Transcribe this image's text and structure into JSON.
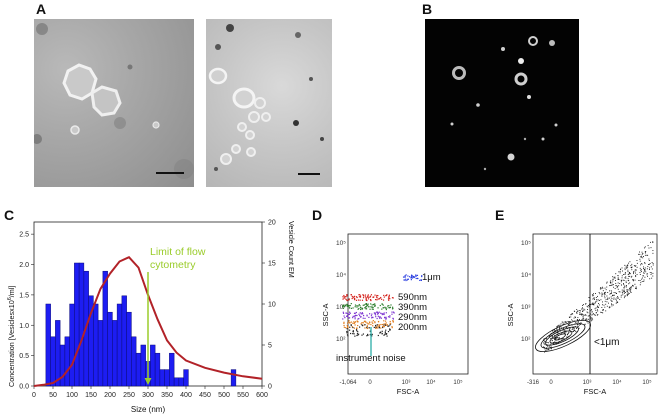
{
  "panels": {
    "A": "A",
    "B": "B",
    "C": "C",
    "D": "D",
    "E": "E"
  },
  "chart_c": {
    "type": "bar+line",
    "annotation": "Limit of flow cytometry",
    "annotation_line1": "Limit of flow",
    "annotation_line2": "cytometry",
    "xlabel": "Size (nm)",
    "ylabel_left": "Concentration [Vesiclesx10",
    "ylabel_left_sup": "6",
    "ylabel_left_end": "/ml]",
    "ylabel_right": "Vesicle Count EM",
    "xticks": [
      "0",
      "50",
      "100",
      "150",
      "200",
      "250",
      "300",
      "350",
      "400",
      "450",
      "500",
      "550",
      "600"
    ],
    "yticks_left": [
      "0.0",
      "0.5",
      "1.0",
      "1.5",
      "2.0",
      "2.5"
    ],
    "yticks_right": [
      "0",
      "5",
      "10",
      "15",
      "20"
    ]
  },
  "chart_d": {
    "xlabel": "FSC-A",
    "ylabel": "SSC-A",
    "xticks": [
      "-1,064",
      "0",
      "10³",
      "10⁴",
      "10⁵"
    ],
    "yticks": [
      "10²",
      "10³",
      "10⁴",
      "10⁵"
    ],
    "labels": [
      "1μm",
      "590nm",
      "390nm",
      "290nm",
      "200nm",
      "instrument noise"
    ]
  },
  "chart_e": {
    "xlabel": "FSC-A",
    "ylabel": "SSC-A",
    "xticks": [
      "-316",
      "0",
      "10³",
      "10⁴",
      "10⁵"
    ],
    "yticks": [
      "10²",
      "10³",
      "10⁴",
      "10⁵"
    ],
    "gate_label": "<1μm"
  },
  "chart_data": [
    {
      "type": "bar",
      "name": "Vesicle Count EM",
      "x": [
        25,
        37.5,
        50,
        62.5,
        75,
        87.5,
        100,
        112.5,
        125,
        137.5,
        150,
        162.5,
        175,
        187.5,
        200,
        212.5,
        225,
        237.5,
        250,
        262.5,
        275,
        287.5,
        300,
        312.5,
        325,
        337.5,
        350,
        362.5,
        375,
        387.5,
        400,
        525
      ],
      "values": [
        0,
        10,
        6,
        8,
        5,
        6,
        10,
        15,
        15,
        14,
        11,
        10,
        8,
        14,
        9,
        8,
        10,
        11,
        9,
        6,
        4,
        5,
        3,
        5,
        4,
        2,
        2,
        4,
        1,
        1,
        2,
        2
      ],
      "ylim": [
        0,
        20
      ]
    },
    {
      "type": "line",
      "name": "Concentration",
      "x": [
        0,
        25,
        50,
        75,
        100,
        125,
        150,
        175,
        200,
        225,
        250,
        275,
        300,
        325,
        350,
        375,
        400,
        450,
        500,
        550,
        600
      ],
      "y": [
        0,
        0.02,
        0.05,
        0.15,
        0.35,
        0.75,
        1.2,
        1.6,
        1.85,
        2.05,
        2.12,
        1.95,
        1.5,
        1.1,
        0.75,
        0.55,
        0.42,
        0.3,
        0.22,
        0.16,
        0.12
      ],
      "ylim": [
        0,
        2.7
      ],
      "xlim": [
        0,
        600
      ],
      "annotation_x": 300
    }
  ],
  "colors": {
    "bar": "#1d1df2",
    "line": "#b22228",
    "annotation": "#9acc2a",
    "noise": "#1aa6a0"
  }
}
